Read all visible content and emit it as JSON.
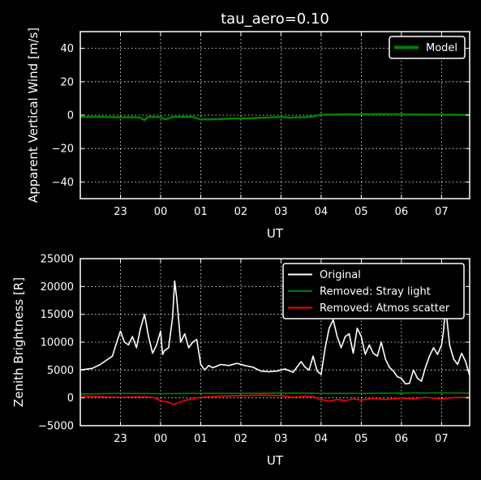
{
  "chart_data": [
    {
      "type": "line",
      "title": "tau_aero=0.10",
      "xlabel": "UT",
      "ylabel": "Apparent Vertical Wind [m/s]",
      "x_ticks": [
        "23",
        "00",
        "01",
        "02",
        "03",
        "04",
        "05",
        "06",
        "07"
      ],
      "x_tick_values": [
        23,
        24,
        25,
        26,
        27,
        28,
        29,
        30,
        31
      ],
      "xlim": [
        22.0,
        31.7
      ],
      "ylim": [
        -50,
        50
      ],
      "y_ticks": [
        40,
        20,
        0,
        -20,
        -40
      ],
      "y_tick_labels": [
        "40",
        "20",
        "0",
        "−20",
        "−40"
      ],
      "grid": true,
      "legend": "top-right",
      "series": [
        {
          "name": "Model",
          "color": "#008000",
          "x": [
            22.0,
            22.5,
            22.8,
            23.0,
            23.3,
            23.5,
            23.6,
            23.7,
            24.0,
            24.1,
            24.2,
            24.3,
            24.5,
            24.8,
            25.0,
            25.2,
            25.5,
            25.8,
            26.0,
            26.3,
            26.6,
            26.9,
            27.0,
            27.2,
            27.4,
            27.6,
            27.8,
            28.0,
            28.3,
            28.6,
            29.0,
            29.5,
            30.0,
            30.5,
            31.0,
            31.5,
            31.7
          ],
          "y": [
            -1.0,
            -1.0,
            -1.2,
            -1.3,
            -1.2,
            -1.5,
            -3.0,
            -1.0,
            -1.2,
            -2.5,
            -2.0,
            -1.0,
            -1.0,
            -1.0,
            -2.6,
            -2.5,
            -2.3,
            -2.0,
            -2.0,
            -1.8,
            -1.5,
            -1.2,
            -1.0,
            -1.5,
            -1.3,
            -1.2,
            -0.8,
            0.3,
            0.4,
            0.5,
            0.5,
            0.6,
            0.5,
            0.4,
            0.3,
            0.2,
            0.2
          ]
        }
      ]
    },
    {
      "type": "line",
      "title": "",
      "xlabel": "UT",
      "ylabel": "Zenith Brightness [R]",
      "x_ticks": [
        "23",
        "00",
        "01",
        "02",
        "03",
        "04",
        "05",
        "06",
        "07"
      ],
      "x_tick_values": [
        23,
        24,
        25,
        26,
        27,
        28,
        29,
        30,
        31
      ],
      "xlim": [
        22.0,
        31.7
      ],
      "ylim": [
        -5000,
        25000
      ],
      "y_ticks": [
        25000,
        20000,
        15000,
        10000,
        5000,
        0,
        -5000
      ],
      "y_tick_labels": [
        "25000",
        "20000",
        "15000",
        "10000",
        "5000",
        "0",
        "−5000"
      ],
      "grid": true,
      "legend": "top-right",
      "series": [
        {
          "name": "Original",
          "color": "#ffffff",
          "x": [
            22.0,
            22.3,
            22.5,
            22.7,
            22.8,
            22.9,
            23.0,
            23.1,
            23.2,
            23.3,
            23.4,
            23.5,
            23.6,
            23.7,
            23.8,
            23.9,
            24.0,
            24.05,
            24.1,
            24.2,
            24.3,
            24.35,
            24.4,
            24.5,
            24.6,
            24.7,
            24.8,
            24.9,
            25.0,
            25.1,
            25.2,
            25.3,
            25.5,
            25.7,
            25.9,
            26.1,
            26.3,
            26.5,
            26.7,
            26.9,
            27.1,
            27.3,
            27.5,
            27.6,
            27.7,
            27.8,
            27.9,
            28.0,
            28.1,
            28.2,
            28.3,
            28.4,
            28.5,
            28.6,
            28.7,
            28.8,
            28.9,
            29.0,
            29.1,
            29.2,
            29.3,
            29.4,
            29.5,
            29.6,
            29.7,
            29.8,
            29.9,
            30.0,
            30.1,
            30.2,
            30.3,
            30.4,
            30.5,
            30.6,
            30.7,
            30.8,
            30.9,
            31.0,
            31.05,
            31.1,
            31.2,
            31.3,
            31.4,
            31.5,
            31.6,
            31.7
          ],
          "y": [
            5000,
            5300,
            6000,
            7000,
            7500,
            9800,
            12000,
            10000,
            9500,
            11000,
            9000,
            12500,
            15000,
            11000,
            8000,
            9500,
            12000,
            7800,
            8500,
            9000,
            14500,
            21000,
            18000,
            10000,
            11500,
            9000,
            10000,
            10500,
            6000,
            5000,
            5800,
            5400,
            6000,
            5800,
            6200,
            5800,
            5500,
            4800,
            4700,
            4800,
            5200,
            4600,
            6500,
            5500,
            5000,
            7500,
            4800,
            4200,
            9000,
            12500,
            14000,
            11000,
            9000,
            11000,
            11500,
            8000,
            12500,
            11000,
            7800,
            9500,
            8000,
            7500,
            10000,
            7000,
            5500,
            4800,
            3800,
            3500,
            2500,
            2600,
            5000,
            3500,
            3000,
            5500,
            7500,
            9000,
            7800,
            9500,
            12000,
            16500,
            9500,
            7000,
            6000,
            8000,
            6500,
            4000
          ]
        },
        {
          "name": "Removed: Stray light",
          "color": "#008000",
          "x": [
            22.0,
            23.0,
            24.0,
            25.0,
            26.0,
            27.0,
            28.0,
            29.0,
            30.0,
            31.0,
            31.7
          ],
          "y": [
            700,
            800,
            750,
            800,
            800,
            850,
            800,
            800,
            850,
            900,
            850
          ]
        },
        {
          "name": "Removed: Atmos scatter",
          "color": "#ff0000",
          "x": [
            22.0,
            22.5,
            23.0,
            23.5,
            23.8,
            24.0,
            24.2,
            24.3,
            24.4,
            24.5,
            24.7,
            25.0,
            25.5,
            26.0,
            26.5,
            27.0,
            27.3,
            27.6,
            27.8,
            28.0,
            28.2,
            28.4,
            28.6,
            28.8,
            29.0,
            29.3,
            29.6,
            30.0,
            30.3,
            30.6,
            31.0,
            31.3,
            31.7
          ],
          "y": [
            300,
            200,
            100,
            200,
            100,
            -500,
            -800,
            -1200,
            -1000,
            -700,
            -300,
            100,
            300,
            400,
            500,
            400,
            100,
            300,
            200,
            -300,
            -600,
            -300,
            -500,
            -200,
            -400,
            -100,
            -300,
            0,
            -200,
            100,
            -200,
            50,
            100
          ]
        }
      ]
    }
  ]
}
